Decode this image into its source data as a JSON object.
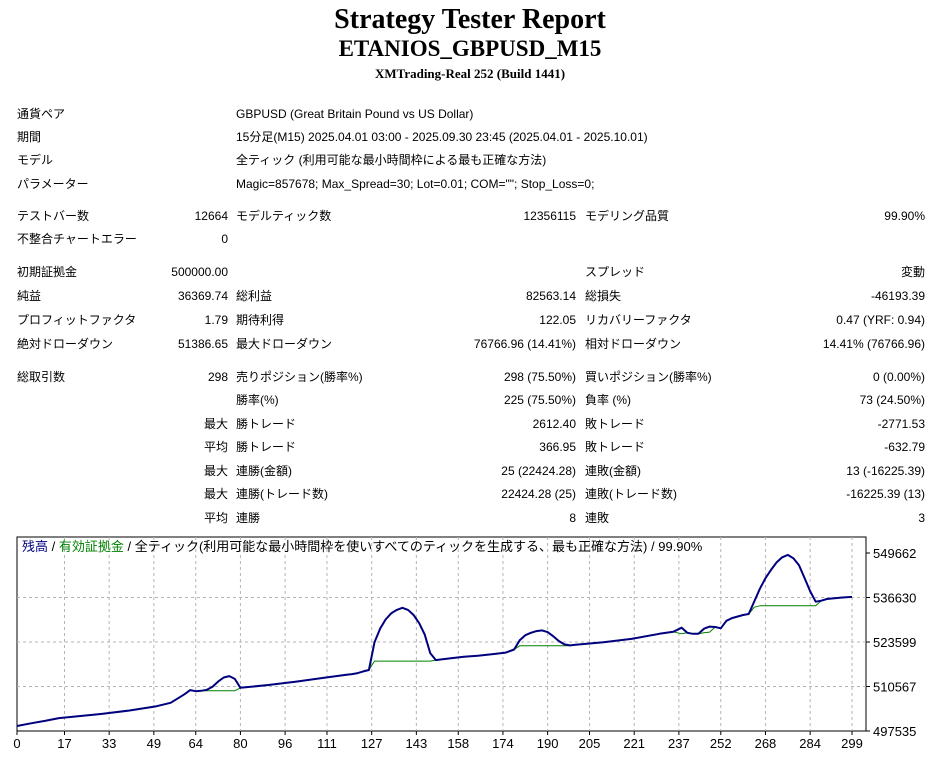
{
  "header": {
    "title": "Strategy Tester Report",
    "ea": "ETANIOS_GBPUSD_M15",
    "server": "XMTrading-Real 252 (Build 1441)"
  },
  "settings": [
    {
      "label": "通貨ペア",
      "value": "GBPUSD (Great Britain Pound vs US Dollar)"
    },
    {
      "label": "期間",
      "value": "15分足(M15) 2025.04.01 03:00 - 2025.09.30 23:45 (2025.04.01 - 2025.10.01)"
    },
    {
      "label": "モデル",
      "value": "全ティック (利用可能な最小時間枠による最も正確な方法)"
    },
    {
      "label": "パラメーター",
      "value": "Magic=857678; Max_Spread=30; Lot=0.01; COM=\"\"; Stop_Loss=0;"
    }
  ],
  "summary": [
    {
      "l1": "テストバー数",
      "v1": "12664",
      "l2": "モデルティック数",
      "v2": "12356115",
      "l3": "モデリング品質",
      "v3": "99.90%"
    },
    {
      "l1": "不整合チャートエラー",
      "v1": "0",
      "l2": "",
      "v2": "",
      "l3": "",
      "v3": ""
    },
    {
      "l1": "初期証拠金",
      "v1": "500000.00",
      "l2": "",
      "v2": "",
      "l3": "スプレッド",
      "v3": "変動"
    },
    {
      "l1": "純益",
      "v1": "36369.74",
      "l2": "総利益",
      "v2": "82563.14",
      "l3": "総損失",
      "v3": "-46193.39"
    },
    {
      "l1": "プロフィットファクタ",
      "v1": "1.79",
      "l2": "期待利得",
      "v2": "122.05",
      "l3": "リカバリーファクタ",
      "v3": "0.47 (YRF: 0.94)"
    },
    {
      "l1": "絶対ドローダウン",
      "v1": "51386.65",
      "l2": "最大ドローダウン",
      "v2": "76766.96 (14.41%)",
      "l3": "相対ドローダウン",
      "v3": "14.41% (76766.96)"
    }
  ],
  "trades": [
    {
      "l1": "総取引数",
      "v1": "298",
      "l2": "売りポジション(勝率%)",
      "v2": "298 (75.50%)",
      "l3": "買いポジション(勝率%)",
      "v3": "0 (0.00%)"
    },
    {
      "l1": "",
      "v1": "",
      "l2": "勝率(%)",
      "v2": "225 (75.50%)",
      "l3": "負率 (%)",
      "v3": "73 (24.50%)"
    },
    {
      "l1": "",
      "v1": "最大",
      "l2": "勝トレード",
      "v2": "2612.40",
      "l3": "敗トレード",
      "v3": "-2771.53"
    },
    {
      "l1": "",
      "v1": "平均",
      "l2": "勝トレード",
      "v2": "366.95",
      "l3": "敗トレード",
      "v3": "-632.79"
    },
    {
      "l1": "",
      "v1": "最大",
      "l2": "連勝(金額)",
      "v2": "25 (22424.28)",
      "l3": "連敗(金額)",
      "v3": "13 (-16225.39)"
    },
    {
      "l1": "",
      "v1": "最大",
      "l2": "連勝(トレード数)",
      "v2": "22424.28 (25)",
      "l3": "連敗(トレード数)",
      "v3": "-16225.39 (13)"
    },
    {
      "l1": "",
      "v1": "平均",
      "l2": "連勝",
      "v2": "8",
      "l3": "連敗",
      "v3": "3"
    }
  ],
  "chart_data": {
    "type": "line",
    "legend": {
      "balance": "残高",
      "sep1": " / ",
      "equity": "有効証拠金",
      "sep2": " / ",
      "model": "全ティック(利用可能な最小時間枠を使いすべてのティックを生成する、最も正確な方法)",
      "sep3": " / ",
      "quality": "99.90%"
    },
    "colors": {
      "balance": "#00007f",
      "equity": "#008000",
      "grid": "#b4b4b4"
    },
    "x_ticks": [
      0,
      17,
      33,
      49,
      64,
      80,
      96,
      111,
      127,
      143,
      158,
      174,
      190,
      205,
      221,
      237,
      252,
      268,
      284,
      299
    ],
    "y_ticks": [
      549662,
      536630,
      523599,
      510567,
      497535
    ],
    "xlim": [
      0,
      304
    ],
    "ylim": [
      497535,
      549662
    ],
    "series": [
      {
        "key": "balance",
        "name": "残高",
        "x": [
          0,
          5,
          10,
          15,
          20,
          30,
          40,
          50,
          55,
          58,
          60,
          62,
          64,
          66,
          68,
          70,
          72,
          74,
          76,
          78,
          80,
          90,
          100,
          110,
          118,
          120,
          122,
          124,
          126,
          128,
          130,
          132,
          134,
          136,
          138,
          140,
          142,
          144,
          146,
          148,
          150,
          152,
          155,
          160,
          165,
          170,
          175,
          178,
          180,
          182,
          184,
          186,
          188,
          190,
          192,
          194,
          196,
          198,
          200,
          210,
          220,
          230,
          235,
          238,
          240,
          242,
          244,
          246,
          248,
          250,
          252,
          254,
          256,
          260,
          262,
          264,
          266,
          268,
          270,
          272,
          274,
          276,
          278,
          280,
          282,
          284,
          286,
          288,
          290,
          295,
          299
        ],
        "y": [
          499000,
          499800,
          500500,
          501300,
          501700,
          502500,
          503500,
          504800,
          505800,
          507300,
          508300,
          509500,
          509200,
          509300,
          509600,
          510500,
          512000,
          513200,
          513600,
          512800,
          510200,
          511000,
          512000,
          513100,
          514000,
          514200,
          514500,
          515000,
          515400,
          523500,
          527500,
          530200,
          532000,
          533000,
          533600,
          533000,
          531500,
          529100,
          525800,
          520300,
          518300,
          518500,
          518800,
          519300,
          519600,
          520000,
          520500,
          521400,
          524100,
          525600,
          526300,
          526800,
          527000,
          526500,
          525300,
          523900,
          522900,
          522600,
          522800,
          523500,
          524500,
          526000,
          526600,
          527800,
          526300,
          526000,
          526000,
          527500,
          528100,
          528000,
          527600,
          529800,
          530600,
          531500,
          531800,
          535500,
          539200,
          542300,
          544700,
          546900,
          548400,
          549100,
          548100,
          546100,
          542300,
          538500,
          535400,
          535700,
          536200,
          536600,
          536800
        ]
      },
      {
        "key": "equity",
        "name": "有効証拠金",
        "x": [
          0,
          5,
          10,
          15,
          20,
          30,
          40,
          50,
          55,
          58,
          60,
          62,
          64,
          66,
          78,
          80,
          90,
          100,
          110,
          118,
          120,
          122,
          124,
          126,
          128,
          148,
          150,
          152,
          155,
          160,
          165,
          170,
          175,
          178,
          180,
          198,
          200,
          210,
          220,
          230,
          235,
          238,
          240,
          242,
          244,
          246,
          248,
          250,
          252,
          254,
          256,
          260,
          262,
          264,
          266,
          286,
          288,
          290,
          295,
          299
        ],
        "y": [
          499000,
          499800,
          500500,
          501300,
          501700,
          502500,
          503500,
          504800,
          505800,
          507300,
          508300,
          509500,
          509200,
          509300,
          509300,
          510200,
          511000,
          512000,
          513100,
          514000,
          514200,
          514500,
          515000,
          515400,
          518000,
          518000,
          518300,
          518500,
          518800,
          519300,
          519600,
          520000,
          520500,
          521400,
          522500,
          522500,
          522800,
          523500,
          524500,
          526000,
          526600,
          526000,
          526300,
          526000,
          526000,
          526300,
          526500,
          528000,
          527600,
          529800,
          530600,
          531500,
          531800,
          533800,
          534200,
          534200,
          535700,
          536200,
          536600,
          536800
        ]
      }
    ]
  }
}
